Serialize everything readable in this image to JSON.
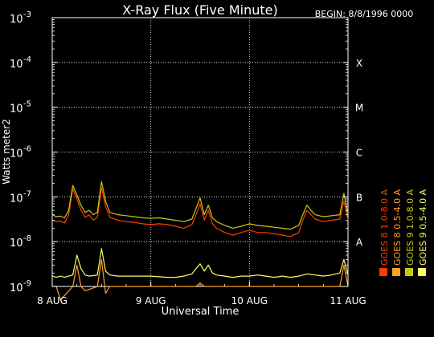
{
  "chart_data": {
    "type": "line",
    "title": "X-Ray Flux (Five Minute)",
    "begin_label": "BEGIN: 8/8/1996 0000",
    "xlabel": "Universal Time",
    "ylabel": "Watts meter2",
    "y_scale": "log",
    "ylim": [
      1e-09,
      0.001
    ],
    "y_ticks": [
      {
        "value": 0.001,
        "base": "10",
        "exp": "-3"
      },
      {
        "value": 0.0001,
        "base": "10",
        "exp": "-4"
      },
      {
        "value": 1e-05,
        "base": "10",
        "exp": "-5"
      },
      {
        "value": 1e-06,
        "base": "10",
        "exp": "-6"
      },
      {
        "value": 1e-07,
        "base": "10",
        "exp": "-7"
      },
      {
        "value": 1e-08,
        "base": "10",
        "exp": "-8"
      },
      {
        "value": 1e-09,
        "base": "10",
        "exp": "-9"
      }
    ],
    "x_ticks": [
      {
        "value": 0,
        "label": "8 AUG"
      },
      {
        "value": 24,
        "label": "9 AUG"
      },
      {
        "value": 48,
        "label": "10 AUG"
      },
      {
        "value": 72,
        "label": "11 AUG"
      }
    ],
    "flare_classes": [
      {
        "label": "X",
        "value": 0.0001
      },
      {
        "label": "M",
        "value": 1e-05
      },
      {
        "label": "C",
        "value": 1e-06
      },
      {
        "label": "B",
        "value": 1e-07
      },
      {
        "label": "A",
        "value": 1e-08
      }
    ],
    "grid": true,
    "legend_position": "right",
    "series": [
      {
        "name": "GOES 8 1.0-8.0 A",
        "color": "#ff3c00",
        "x": [
          0,
          1,
          2,
          3,
          4,
          5,
          6,
          7,
          8,
          9,
          10,
          11,
          12,
          13,
          14,
          16,
          18,
          20,
          22,
          24,
          26,
          28,
          30,
          32,
          34,
          35,
          36,
          37,
          38,
          39,
          40,
          42,
          44,
          46,
          48,
          50,
          52,
          54,
          56,
          58,
          60,
          61,
          62,
          63,
          64,
          66,
          68,
          70,
          71,
          72
        ],
        "y": [
          3e-08,
          2.8e-08,
          2.9e-08,
          2.6e-08,
          4e-08,
          1.5e-07,
          9e-08,
          5e-08,
          3.5e-08,
          4e-08,
          3e-08,
          3.5e-08,
          1.6e-07,
          6e-08,
          3.5e-08,
          3e-08,
          2.8e-08,
          2.7e-08,
          2.5e-08,
          2.4e-08,
          2.5e-08,
          2.4e-08,
          2.2e-08,
          2e-08,
          2.4e-08,
          4e-08,
          7e-08,
          3e-08,
          5e-08,
          2.5e-08,
          2e-08,
          1.6e-08,
          1.4e-08,
          1.6e-08,
          1.8e-08,
          1.6e-08,
          1.6e-08,
          1.5e-08,
          1.4e-08,
          1.3e-08,
          1.6e-08,
          3e-08,
          5e-08,
          4e-08,
          3.2e-08,
          2.8e-08,
          3e-08,
          3.2e-08,
          8e-08,
          3e-08
        ]
      },
      {
        "name": "GOES 8 0.5-4.0 A",
        "color": "#ffa020",
        "x": [
          0,
          1,
          2,
          5,
          6,
          7,
          8,
          11,
          12,
          13,
          14,
          20,
          24,
          30,
          34,
          35,
          36,
          37,
          38,
          40,
          44,
          48,
          52,
          56,
          60,
          61,
          62,
          64,
          68,
          70,
          71,
          72
        ],
        "y": [
          1e-09,
          1e-09,
          5e-10,
          1e-09,
          3e-09,
          1e-09,
          8e-10,
          1e-09,
          4e-09,
          7e-10,
          1e-09,
          1e-09,
          1e-09,
          1e-09,
          1e-09,
          1e-09,
          1.2e-09,
          1e-09,
          1e-09,
          1e-09,
          1e-09,
          1e-09,
          1e-09,
          1e-09,
          1e-09,
          1e-09,
          1e-09,
          1e-09,
          1e-09,
          1e-09,
          3e-09,
          1e-09
        ]
      },
      {
        "name": "GOES 9 1.0-8.0 A",
        "color": "#c8c814",
        "x": [
          0,
          1,
          2,
          3,
          4,
          5,
          6,
          7,
          8,
          9,
          10,
          11,
          12,
          13,
          14,
          16,
          18,
          20,
          22,
          24,
          26,
          28,
          30,
          32,
          34,
          35,
          36,
          37,
          38,
          39,
          40,
          42,
          44,
          46,
          48,
          50,
          52,
          54,
          56,
          58,
          60,
          61,
          62,
          63,
          64,
          66,
          68,
          70,
          71,
          72
        ],
        "y": [
          4e-08,
          3.6e-08,
          3.7e-08,
          3.4e-08,
          5e-08,
          1.8e-07,
          1.1e-07,
          6.5e-08,
          4.5e-08,
          5e-08,
          4e-08,
          4.5e-08,
          2.2e-07,
          8e-08,
          4.5e-08,
          4e-08,
          3.8e-08,
          3.6e-08,
          3.4e-08,
          3.3e-08,
          3.4e-08,
          3.2e-08,
          3e-08,
          2.8e-08,
          3.2e-08,
          5.5e-08,
          9.5e-08,
          4e-08,
          6.5e-08,
          3.4e-08,
          2.8e-08,
          2.3e-08,
          2e-08,
          2.2e-08,
          2.5e-08,
          2.3e-08,
          2.2e-08,
          2.1e-08,
          2e-08,
          1.9e-08,
          2.3e-08,
          4e-08,
          6.5e-08,
          5e-08,
          4e-08,
          3.6e-08,
          3.8e-08,
          4e-08,
          1.2e-07,
          4e-08
        ]
      },
      {
        "name": "GOES 9 0.5-4.0 A",
        "color": "#ffff64",
        "x": [
          0,
          1,
          2,
          3,
          5,
          6,
          7,
          8,
          9,
          11,
          12,
          13,
          14,
          16,
          20,
          24,
          28,
          30,
          32,
          34,
          35,
          36,
          37,
          38,
          39,
          40,
          42,
          44,
          46,
          48,
          50,
          52,
          54,
          56,
          58,
          60,
          62,
          64,
          66,
          68,
          70,
          71,
          72
        ],
        "y": [
          1.7e-09,
          1.6e-09,
          1.7e-09,
          1.6e-09,
          1.8e-09,
          5e-09,
          2.5e-09,
          1.8e-09,
          1.7e-09,
          1.8e-09,
          7e-09,
          2.2e-09,
          1.8e-09,
          1.7e-09,
          1.7e-09,
          1.7e-09,
          1.6e-09,
          1.6e-09,
          1.7e-09,
          1.9e-09,
          2.5e-09,
          3.2e-09,
          2.2e-09,
          3e-09,
          2e-09,
          1.8e-09,
          1.7e-09,
          1.6e-09,
          1.7e-09,
          1.7e-09,
          1.8e-09,
          1.7e-09,
          1.6e-09,
          1.7e-09,
          1.6e-09,
          1.7e-09,
          1.9e-09,
          1.8e-09,
          1.7e-09,
          1.8e-09,
          2e-09,
          4e-09,
          1.8e-09
        ]
      }
    ]
  }
}
